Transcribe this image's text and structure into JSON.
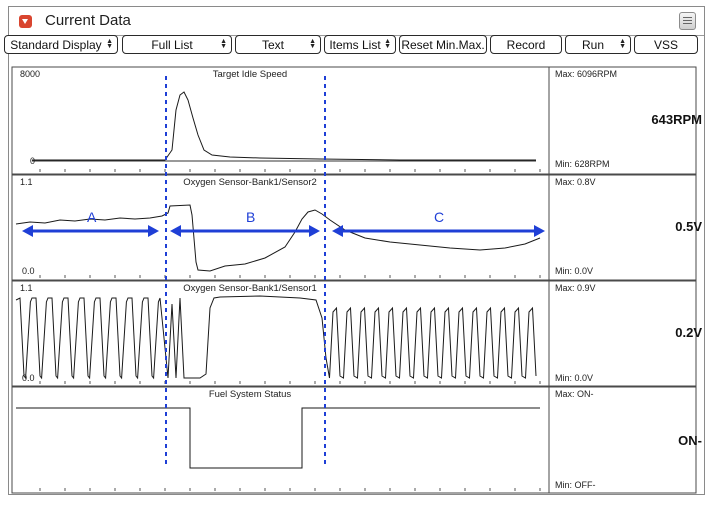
{
  "window": {
    "title": "Current Data",
    "menu_icon": "list-icon",
    "title_icon": "collapse-arrow-icon"
  },
  "toolbar": {
    "display_mode": "Standard Display",
    "list_mode": "Full List",
    "view_mode": "Text",
    "items_list": "Items List",
    "reset_minmax": "Reset Min.Max.",
    "record": "Record",
    "run": "Run",
    "vss": "VSS"
  },
  "panels": [
    {
      "title": "Target Idle Speed",
      "ymax_label": "8000",
      "ymin_label": "0",
      "max_text": "Max:  6096RPM",
      "min_text": "Min:   628RPM",
      "value": "643RPM"
    },
    {
      "title": "Oxygen Sensor-Bank1/Sensor2",
      "ymax_label": "1.1",
      "ymin_label": "0.0",
      "max_text": "Max:   0.8V",
      "min_text": "Min:    0.0V",
      "value": "0.5V"
    },
    {
      "title": "Oxygen Sensor-Bank1/Sensor1",
      "ymax_label": "1.1",
      "ymin_label": "0.0",
      "max_text": "Max:   0.9V",
      "min_text": "Min:    0.0V",
      "value": "0.2V"
    },
    {
      "title": "Fuel System Status",
      "ymax_label": "",
      "ymin_label": "",
      "max_text": "Max: ON-",
      "min_text": "Min:  OFF-",
      "value": "ON-"
    }
  ],
  "annotations": {
    "segment_a": "A",
    "segment_b": "B",
    "segment_c": "C"
  },
  "colors": {
    "annotation": "#1f3fd6",
    "trace": "#1a1a1a",
    "grid": "#7a7a7a"
  }
}
